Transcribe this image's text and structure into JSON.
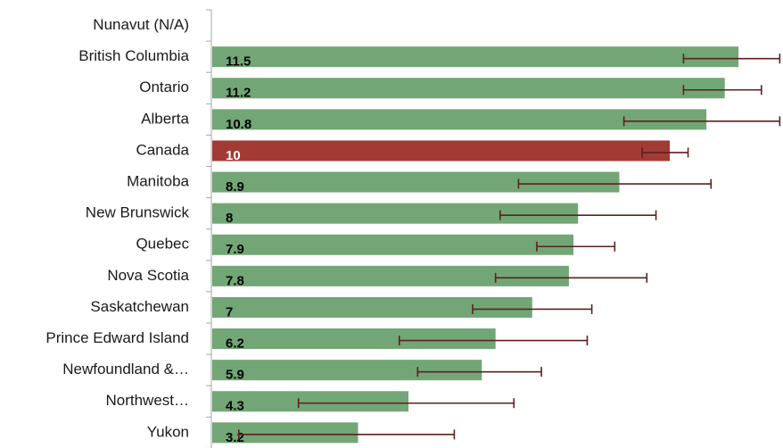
{
  "chart_data": {
    "type": "bar",
    "orientation": "horizontal",
    "categories": [
      "Nunavut (N/A)",
      "British Columbia",
      "Ontario",
      "Alberta",
      "Canada",
      "Manitoba",
      "New Brunswick",
      "Quebec",
      "Nova Scotia",
      "Saskatchewan",
      "Prince Edward Island",
      "Newfoundland &…",
      "Northwest…",
      "Yukon"
    ],
    "values": [
      null,
      11.5,
      11.2,
      10.8,
      10,
      8.9,
      8,
      7.9,
      7.8,
      7,
      6.2,
      5.9,
      4.3,
      3.2
    ],
    "value_labels": [
      "",
      "11.5",
      "11.2",
      "10.8",
      "10",
      "8.9",
      "8",
      "7.9",
      "7.8",
      "7",
      "6.2",
      "5.9",
      "4.3",
      "3.2"
    ],
    "error_low": [
      null,
      10.3,
      10.3,
      9.0,
      9.4,
      6.7,
      6.3,
      7.1,
      6.2,
      5.7,
      4.1,
      4.5,
      1.9,
      0.6
    ],
    "error_high": [
      null,
      12.4,
      12.0,
      12.4,
      10.4,
      10.9,
      9.7,
      8.8,
      9.5,
      8.3,
      8.2,
      7.2,
      6.6,
      5.3
    ],
    "highlight_category": "Canada",
    "xlim": [
      0,
      12.4
    ],
    "grid": false,
    "legend": "none",
    "title": "",
    "xlabel": "",
    "ylabel": "",
    "colors": {
      "bar": "#72a676",
      "highlight_bar": "#a33a34",
      "error_bar": "#5e2020",
      "label_dark": "#000000",
      "label_light": "#ffffff",
      "axis": "#a6a6a6"
    }
  }
}
